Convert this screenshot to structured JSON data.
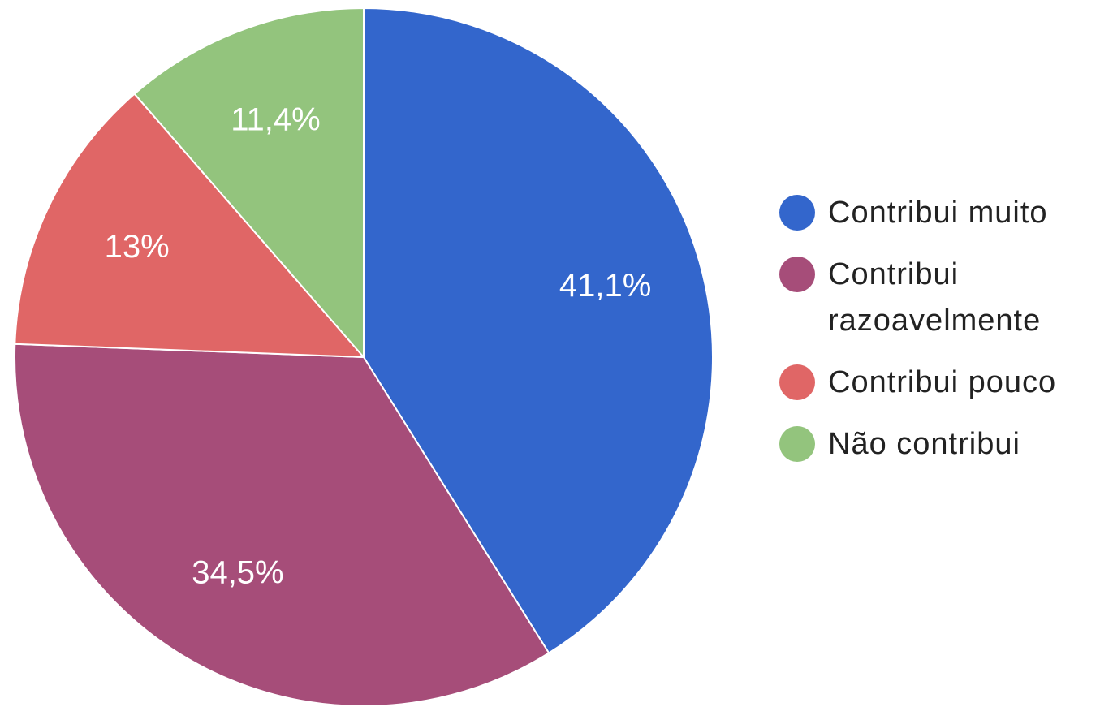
{
  "chart_data": {
    "type": "pie",
    "categories": [
      "Contribui muito",
      "Contribui razoavelmente",
      "Contribui pouco",
      "Não contribui"
    ],
    "values": [
      41.1,
      34.5,
      13,
      11.4
    ],
    "value_labels": [
      "41,1%",
      "34,5%",
      "13%",
      "11,4%"
    ],
    "colors": [
      "#3366cc",
      "#a64d79",
      "#e06666",
      "#93c47d"
    ],
    "legend": "right"
  }
}
